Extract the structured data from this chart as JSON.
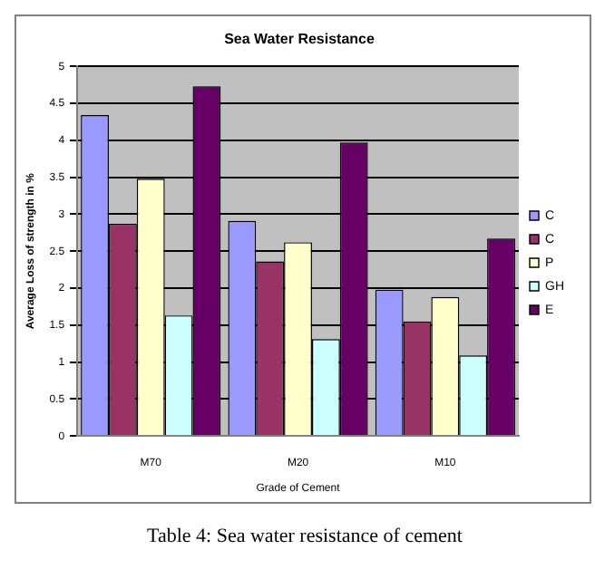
{
  "chart_data": {
    "type": "bar",
    "title": "Sea Water Resistance",
    "xlabel": "Grade of Cement",
    "ylabel": "Average Loss of strength in %",
    "categories": [
      "M70",
      "M20",
      "M10"
    ],
    "series": [
      {
        "name": "C",
        "color": "#9999ff",
        "values": [
          4.34,
          2.91,
          1.98
        ]
      },
      {
        "name": "C",
        "color": "#993366",
        "values": [
          2.87,
          2.36,
          1.55
        ]
      },
      {
        "name": "P",
        "color": "#ffffcc",
        "values": [
          3.48,
          2.62,
          1.88
        ]
      },
      {
        "name": "GH",
        "color": "#ccffff",
        "values": [
          1.63,
          1.31,
          1.09
        ]
      },
      {
        "name": "E",
        "color": "#660066",
        "values": [
          4.73,
          3.97,
          2.67
        ]
      }
    ],
    "ylim": [
      0,
      5
    ],
    "yticks": [
      0,
      0.5,
      1,
      1.5,
      2,
      2.5,
      3,
      3.5,
      4,
      4.5,
      5
    ],
    "grid": "y",
    "legend": "right",
    "annotations": [
      "Table 4: Sea water resistance of cement"
    ]
  }
}
